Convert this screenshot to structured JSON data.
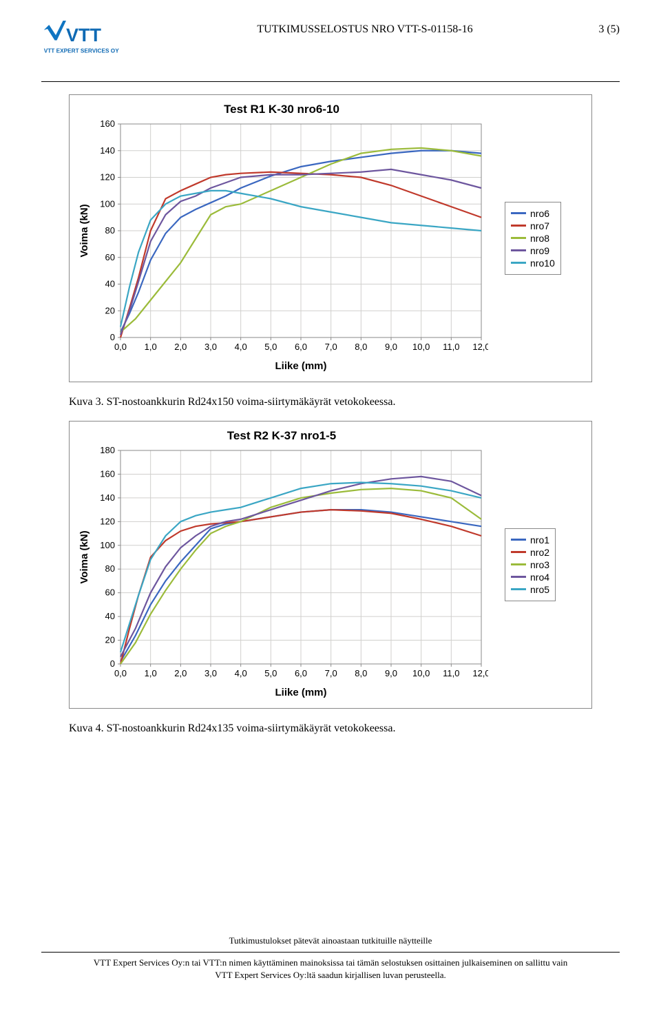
{
  "header": {
    "doc_title": "TUTKIMUSSELOSTUS NRO VTT-S-01158-16",
    "page_indicator": "3 (5)",
    "logo_company": "VTT EXPERT SERVICES OY",
    "logo_letters": "VTT",
    "logo_blue": "#1075c2"
  },
  "chart1": {
    "type": "line",
    "title": "Test R1 K-30 nro6-10",
    "xlabel": "Liike (mm)",
    "ylabel": "Voima (kN)",
    "xlim": [
      0,
      12
    ],
    "xtick_step": 1.0,
    "ylim": [
      0,
      160
    ],
    "ytick_step": 20,
    "x_tick_format": "comma",
    "background_color": "#ffffff",
    "grid_color": "#d0cfcd",
    "plot_area_border": "#8a8a8a",
    "title_fontsize": 17,
    "label_fontsize": 15,
    "tick_fontsize": 13,
    "line_width": 2.2,
    "series": [
      {
        "name": "nro6",
        "color": "#3a67c0",
        "x": [
          0,
          0.3,
          0.6,
          1.0,
          1.5,
          2.0,
          2.5,
          3.0,
          3.5,
          4.0,
          5.0,
          6.0,
          7.0,
          8.0,
          9.0,
          10.0,
          11.0,
          12.0
        ],
        "y": [
          4,
          18,
          34,
          58,
          78,
          90,
          96,
          101,
          106,
          112,
          121,
          128,
          132,
          135,
          138,
          140,
          140,
          138
        ]
      },
      {
        "name": "nro7",
        "color": "#c0392b",
        "x": [
          0,
          0.3,
          0.6,
          1.0,
          1.5,
          2.0,
          2.5,
          3.0,
          3.5,
          4.0,
          5.0,
          6.0,
          7.0,
          8.0,
          9.0,
          10.0,
          11.0,
          12.0
        ],
        "y": [
          0,
          22,
          45,
          80,
          104,
          110,
          115,
          120,
          122,
          123,
          124,
          123,
          122,
          120,
          114,
          106,
          98,
          90
        ]
      },
      {
        "name": "nro8",
        "color": "#9bbb3a",
        "x": [
          0,
          0.5,
          1.0,
          1.5,
          2.0,
          2.5,
          3.0,
          3.5,
          4.0,
          5.0,
          6.0,
          7.0,
          8.0,
          9.0,
          10.0,
          11.0,
          12.0
        ],
        "y": [
          4,
          14,
          28,
          42,
          56,
          74,
          92,
          98,
          100,
          110,
          120,
          130,
          138,
          141,
          142,
          140,
          136
        ]
      },
      {
        "name": "nro9",
        "color": "#6d569e",
        "x": [
          0,
          0.3,
          0.6,
          1.0,
          1.5,
          2.0,
          2.5,
          3.0,
          3.5,
          4.0,
          5.0,
          6.0,
          7.0,
          8.0,
          9.0,
          10.0,
          11.0,
          12.0
        ],
        "y": [
          2,
          20,
          42,
          72,
          92,
          102,
          106,
          112,
          116,
          120,
          122,
          122,
          123,
          124,
          126,
          122,
          118,
          112
        ]
      },
      {
        "name": "nro10",
        "color": "#3aa6c4",
        "x": [
          0,
          0.3,
          0.6,
          1.0,
          1.5,
          2.0,
          2.5,
          3.0,
          3.5,
          4.0,
          5.0,
          6.0,
          7.0,
          8.0,
          9.0,
          10.0,
          11.0,
          12.0
        ],
        "y": [
          8,
          38,
          64,
          88,
          100,
          106,
          108,
          110,
          110,
          108,
          104,
          98,
          94,
          90,
          86,
          84,
          82,
          80
        ]
      }
    ]
  },
  "caption1": "Kuva 3. ST-nostoankkurin Rd24x150 voima-siirtymäkäyrät vetokokeessa.",
  "chart2": {
    "type": "line",
    "title": "Test R2 K-37 nro1-5",
    "xlabel": "Liike (mm)",
    "ylabel": "Voima (kN)",
    "xlim": [
      0,
      12
    ],
    "xtick_step": 1.0,
    "ylim": [
      0,
      180
    ],
    "ytick_step": 20,
    "x_tick_format": "comma",
    "background_color": "#ffffff",
    "grid_color": "#d0cfcd",
    "plot_area_border": "#8a8a8a",
    "title_fontsize": 17,
    "label_fontsize": 15,
    "tick_fontsize": 13,
    "line_width": 2.2,
    "series": [
      {
        "name": "nro1",
        "color": "#3a67c0",
        "x": [
          0,
          0.5,
          1.0,
          1.5,
          2.0,
          2.5,
          3.0,
          3.5,
          4.0,
          5.0,
          6.0,
          7.0,
          8.0,
          9.0,
          10.0,
          11.0,
          12.0
        ],
        "y": [
          2,
          24,
          50,
          70,
          86,
          100,
          114,
          118,
          120,
          124,
          128,
          130,
          130,
          128,
          124,
          120,
          116
        ]
      },
      {
        "name": "nro2",
        "color": "#c0392b",
        "x": [
          0,
          0.3,
          0.6,
          1.0,
          1.5,
          2.0,
          2.5,
          3.0,
          3.5,
          4.0,
          5.0,
          6.0,
          7.0,
          8.0,
          9.0,
          10.0,
          11.0,
          12.0
        ],
        "y": [
          0,
          30,
          58,
          90,
          104,
          112,
          116,
          118,
          119,
          120,
          124,
          128,
          130,
          129,
          127,
          122,
          116,
          108
        ]
      },
      {
        "name": "nro3",
        "color": "#9bbb3a",
        "x": [
          0,
          0.5,
          1.0,
          1.5,
          2.0,
          2.5,
          3.0,
          3.5,
          4.0,
          5.0,
          6.0,
          7.0,
          8.0,
          9.0,
          10.0,
          11.0,
          12.0
        ],
        "y": [
          0,
          18,
          42,
          62,
          80,
          96,
          110,
          116,
          120,
          132,
          140,
          144,
          147,
          148,
          146,
          140,
          122
        ]
      },
      {
        "name": "nro4",
        "color": "#6d569e",
        "x": [
          0,
          0.5,
          1.0,
          1.5,
          2.0,
          2.5,
          3.0,
          3.5,
          4.0,
          5.0,
          6.0,
          7.0,
          8.0,
          9.0,
          10.0,
          11.0,
          12.0
        ],
        "y": [
          6,
          30,
          60,
          82,
          98,
          108,
          116,
          120,
          122,
          130,
          138,
          146,
          152,
          156,
          158,
          154,
          142
        ]
      },
      {
        "name": "nro5",
        "color": "#3aa6c4",
        "x": [
          0,
          0.3,
          0.6,
          1.0,
          1.5,
          2.0,
          2.5,
          3.0,
          3.5,
          4.0,
          5.0,
          6.0,
          7.0,
          8.0,
          9.0,
          10.0,
          11.0,
          12.0
        ],
        "y": [
          10,
          34,
          58,
          88,
          108,
          120,
          125,
          128,
          130,
          132,
          140,
          148,
          152,
          153,
          152,
          150,
          146,
          140
        ]
      }
    ]
  },
  "caption2": "Kuva 4. ST-nostoankkurin Rd24x135 voima-siirtymäkäyrät vetokokeessa.",
  "footer": {
    "line1": "Tutkimustulokset pätevät ainoastaan tutkituille näytteille",
    "line2": "VTT Expert Services Oy:n tai VTT:n nimen käyttäminen mainoksissa tai tämän selostuksen osittainen julkaiseminen on sallittu vain",
    "line3": "VTT Expert Services Oy:ltä saadun kirjallisen luvan perusteella."
  }
}
